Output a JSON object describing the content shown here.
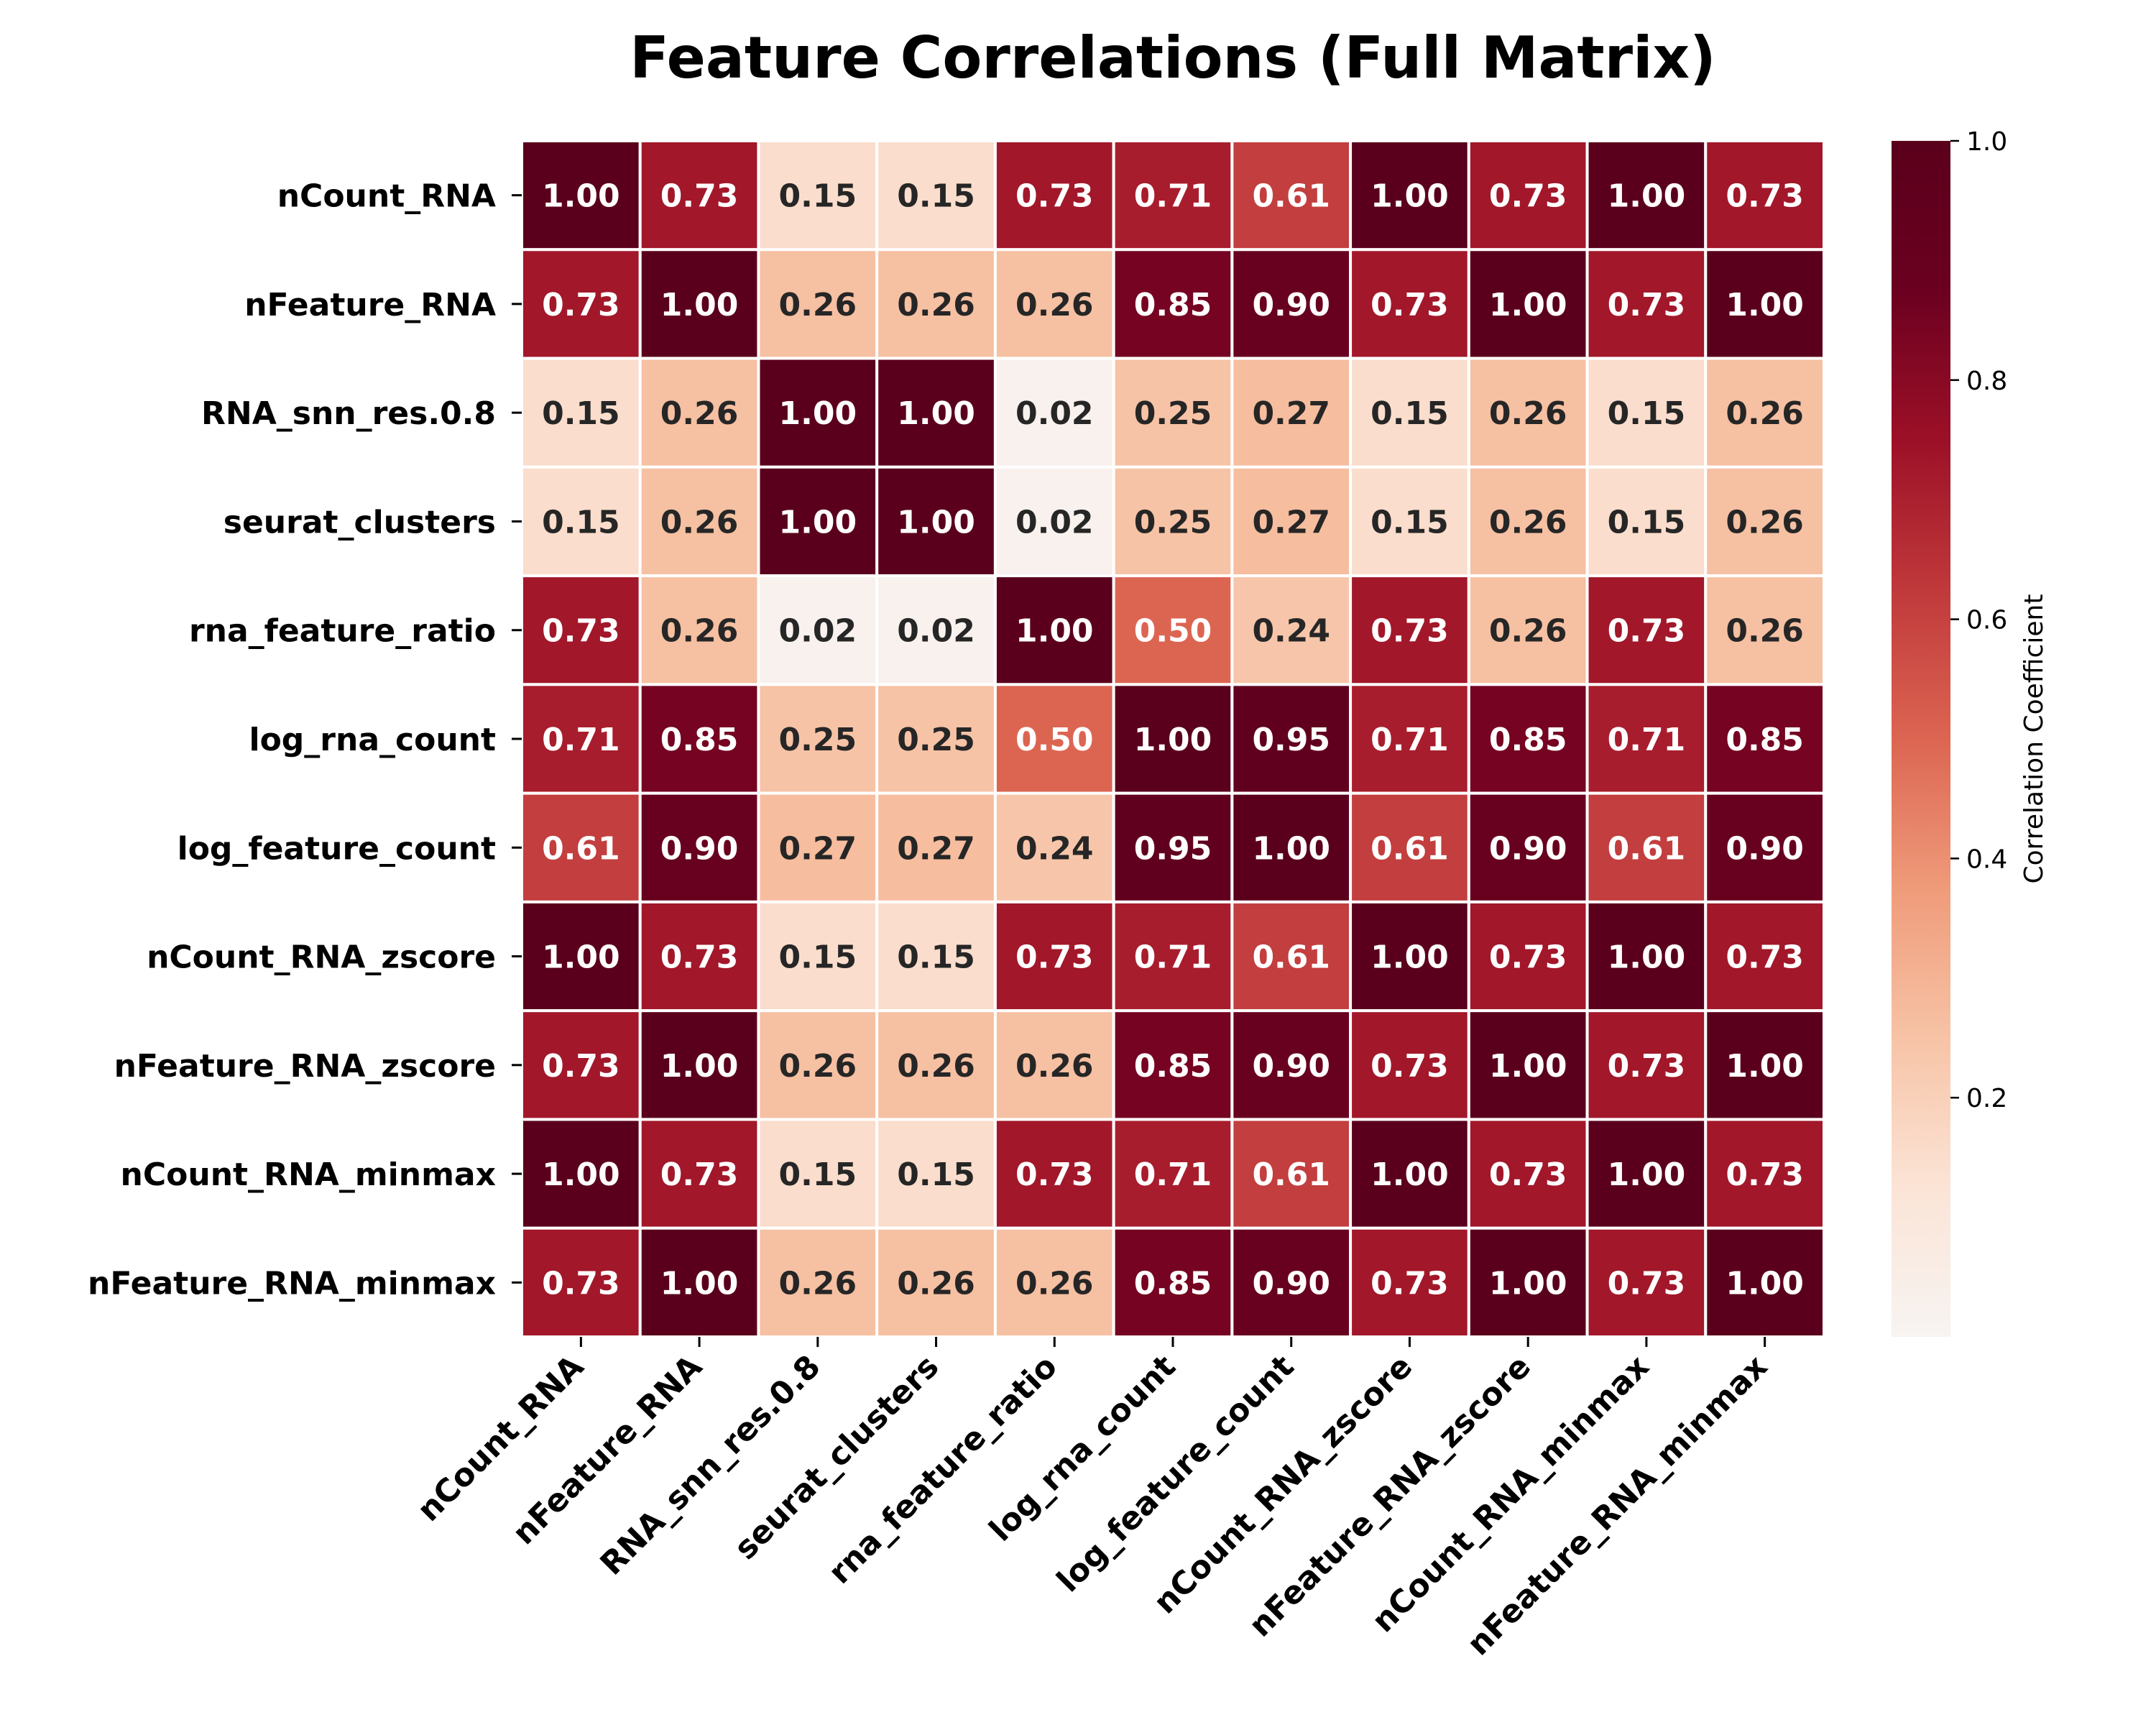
{
  "chart_data": {
    "type": "heatmap",
    "title": "Feature Correlations (Full Matrix)",
    "row_labels": [
      "nCount_RNA",
      "nFeature_RNA",
      "RNA_snn_res.0.8",
      "seurat_clusters",
      "rna_feature_ratio",
      "log_rna_count",
      "log_feature_count",
      "nCount_RNA_zscore",
      "nFeature_RNA_zscore",
      "nCount_RNA_minmax",
      "nFeature_RNA_minmax"
    ],
    "col_labels": [
      "nCount_RNA",
      "nFeature_RNA",
      "RNA_snn_res.0.8",
      "seurat_clusters",
      "rna_feature_ratio",
      "log_rna_count",
      "log_feature_count",
      "nCount_RNA_zscore",
      "nFeature_RNA_zscore",
      "nCount_RNA_minmax",
      "nFeature_RNA_minmax"
    ],
    "values": [
      [
        1.0,
        0.73,
        0.15,
        0.15,
        0.73,
        0.71,
        0.61,
        1.0,
        0.73,
        1.0,
        0.73
      ],
      [
        0.73,
        1.0,
        0.26,
        0.26,
        0.26,
        0.85,
        0.9,
        0.73,
        1.0,
        0.73,
        1.0
      ],
      [
        0.15,
        0.26,
        1.0,
        1.0,
        0.02,
        0.25,
        0.27,
        0.15,
        0.26,
        0.15,
        0.26
      ],
      [
        0.15,
        0.26,
        1.0,
        1.0,
        0.02,
        0.25,
        0.27,
        0.15,
        0.26,
        0.15,
        0.26
      ],
      [
        0.73,
        0.26,
        0.02,
        0.02,
        1.0,
        0.5,
        0.24,
        0.73,
        0.26,
        0.73,
        0.26
      ],
      [
        0.71,
        0.85,
        0.25,
        0.25,
        0.5,
        1.0,
        0.95,
        0.71,
        0.85,
        0.71,
        0.85
      ],
      [
        0.61,
        0.9,
        0.27,
        0.27,
        0.24,
        0.95,
        1.0,
        0.61,
        0.9,
        0.61,
        0.9
      ],
      [
        1.0,
        0.73,
        0.15,
        0.15,
        0.73,
        0.71,
        0.61,
        1.0,
        0.73,
        1.0,
        0.73
      ],
      [
        0.73,
        1.0,
        0.26,
        0.26,
        0.26,
        0.85,
        0.9,
        0.73,
        1.0,
        0.73,
        1.0
      ],
      [
        1.0,
        0.73,
        0.15,
        0.15,
        0.73,
        0.71,
        0.61,
        1.0,
        0.73,
        1.0,
        0.73
      ],
      [
        0.73,
        1.0,
        0.26,
        0.26,
        0.26,
        0.85,
        0.9,
        0.73,
        1.0,
        0.73,
        1.0
      ]
    ],
    "value_format": "0.00",
    "colormap": "Reds (light to dark red)",
    "colormap_stops": [
      "#f7f4f2",
      "#fbe4d6",
      "#f7c3a6",
      "#ef9b7a",
      "#dc6552",
      "#c0393b",
      "#9c1027",
      "#6b0020",
      "#5a001c"
    ],
    "vmin": 0.0,
    "vmax": 1.0,
    "colorbar": {
      "label": "Correlation Coefficient",
      "ticks": [
        0.2,
        0.4,
        0.6,
        0.8,
        1.0
      ],
      "tick_labels": [
        "0.2",
        "0.4",
        "0.6",
        "0.8",
        "1.0"
      ]
    },
    "text_color_dark": "#262626",
    "text_color_light": "#ffffff",
    "cell_border_color": "#ffffff"
  }
}
